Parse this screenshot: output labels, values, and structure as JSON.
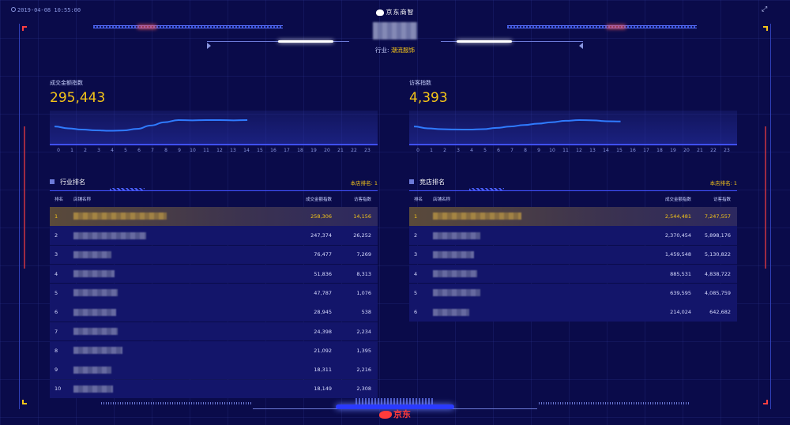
{
  "header": {
    "timestamp": "2019-04-08 10:55:00",
    "brand": "京东商智",
    "industry_label": "行业:",
    "industry_value": "潮流服饰"
  },
  "metrics": {
    "left": {
      "label": "成交金额指数",
      "value": "295,443"
    },
    "right": {
      "label": "访客指数",
      "value": "4,393"
    }
  },
  "hours": [
    "0",
    "1",
    "2",
    "3",
    "4",
    "5",
    "6",
    "7",
    "8",
    "9",
    "10",
    "11",
    "12",
    "13",
    "14",
    "15",
    "16",
    "17",
    "18",
    "19",
    "20",
    "21",
    "22",
    "23"
  ],
  "trend_left": [
    0.55,
    0.42,
    0.33,
    0.28,
    0.25,
    0.27,
    0.38,
    0.62,
    0.85,
    1.0,
    0.98,
    1.0,
    1.0,
    0.98,
    1.0
  ],
  "trend_right": [
    0.55,
    0.42,
    0.36,
    0.34,
    0.33,
    0.36,
    0.45,
    0.55,
    0.65,
    0.75,
    0.85,
    0.95,
    1.0,
    0.98,
    0.92,
    0.9
  ],
  "industry_rank": {
    "title": "行业排名",
    "my_rank": "本店排名: 1",
    "col_rank": "排名",
    "col_name": "店铺名称",
    "col_amount": "成交金额指数",
    "col_visitors": "访客指数",
    "rows": [
      {
        "rank": "1",
        "amount": "258,306",
        "visitors": "14,156"
      },
      {
        "rank": "2",
        "amount": "247,374",
        "visitors": "26,252"
      },
      {
        "rank": "3",
        "amount": "76,477",
        "visitors": "7,269"
      },
      {
        "rank": "4",
        "amount": "51,836",
        "visitors": "8,313"
      },
      {
        "rank": "5",
        "amount": "47,787",
        "visitors": "1,076"
      },
      {
        "rank": "6",
        "amount": "28,945",
        "visitors": "538"
      },
      {
        "rank": "7",
        "amount": "24,398",
        "visitors": "2,234"
      },
      {
        "rank": "8",
        "amount": "21,092",
        "visitors": "1,395"
      },
      {
        "rank": "9",
        "amount": "18,311",
        "visitors": "2,216"
      },
      {
        "rank": "10",
        "amount": "18,149",
        "visitors": "2,308"
      }
    ]
  },
  "competitor_rank": {
    "title": "竞店排名",
    "my_rank": "本店排名: 1",
    "col_rank": "排名",
    "col_name": "店铺名称",
    "col_amount": "成交金额指数",
    "col_visitors": "访客指数",
    "rows": [
      {
        "rank": "1",
        "amount": "2,544,481",
        "visitors": "7,247,557"
      },
      {
        "rank": "2",
        "amount": "2,370,454",
        "visitors": "5,898,176"
      },
      {
        "rank": "3",
        "amount": "1,459,548",
        "visitors": "5,130,822"
      },
      {
        "rank": "4",
        "amount": "885,531",
        "visitors": "4,838,722"
      },
      {
        "rank": "5",
        "amount": "639,595",
        "visitors": "4,085,759"
      },
      {
        "rank": "6",
        "amount": "214,024",
        "visitors": "642,682"
      }
    ]
  },
  "footer": {
    "logo_text": "京东"
  },
  "colors": {
    "background": "#0a0b4a",
    "accent": "#f5c518",
    "line": "#2f7bff",
    "alert": "#ff3b3b"
  }
}
